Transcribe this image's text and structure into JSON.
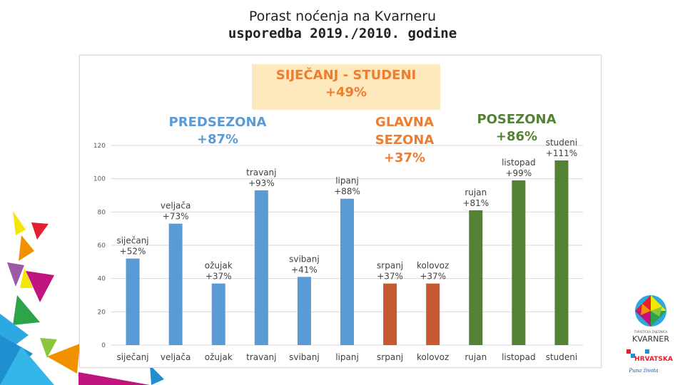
{
  "slide": {
    "title": "Porast noćenja na Kvarneru",
    "subtitle": "usporedba 2019./2010. godine"
  },
  "chart_data": {
    "type": "bar",
    "categories": [
      "siječanj",
      "veljača",
      "ožujak",
      "travanj",
      "svibanj",
      "lipanj",
      "srpanj",
      "kolovoz",
      "rujan",
      "listopad",
      "studeni"
    ],
    "values": [
      52,
      73,
      37,
      93,
      41,
      88,
      37,
      37,
      81,
      99,
      111
    ],
    "bar_labels": [
      [
        "siječanj",
        "+52%"
      ],
      [
        "veljača",
        "+73%"
      ],
      [
        "ožujak",
        "+37%"
      ],
      [
        "travanj",
        "+93%"
      ],
      [
        "svibanj",
        "+41%"
      ],
      [
        "lipanj",
        "+88%"
      ],
      [
        "srpanj",
        "+37%"
      ],
      [
        "kolovoz",
        "+37%"
      ],
      [
        "rujan",
        "+81%"
      ],
      [
        "listopad",
        "+99%"
      ],
      [
        "studeni",
        "+111%"
      ]
    ],
    "season_of_bar": [
      "pre",
      "pre",
      "pre",
      "pre",
      "pre",
      "pre",
      "main",
      "main",
      "post",
      "post",
      "post"
    ],
    "ylim": [
      0,
      120
    ],
    "yticks": [
      0,
      20,
      40,
      60,
      80,
      100,
      120
    ],
    "grid": true,
    "colors": {
      "pre": "#5b9bd5",
      "main": "#c55a32",
      "post": "#548235"
    },
    "annotations": {
      "total": {
        "lines": [
          "SIJEČANJ - STUDENI",
          "+49%"
        ],
        "color": "#ed7d31",
        "background": "#fde9bd"
      },
      "pre": {
        "lines": [
          "PREDSEZONA",
          "+87%"
        ],
        "color": "#5b9bd5"
      },
      "main": {
        "lines": [
          "GLAVNA",
          "SEZONA",
          "+37%"
        ],
        "color": "#ed7d31"
      },
      "post": {
        "lines": [
          "POSEZONA",
          "+86%"
        ],
        "color": "#548235"
      }
    }
  },
  "brand": {
    "logo_text_small": "TURISTIČKA ZAJEDNICA",
    "logo_text": "KVARNER",
    "country_text": "HRVATSKA",
    "slogan": "Puna života"
  }
}
